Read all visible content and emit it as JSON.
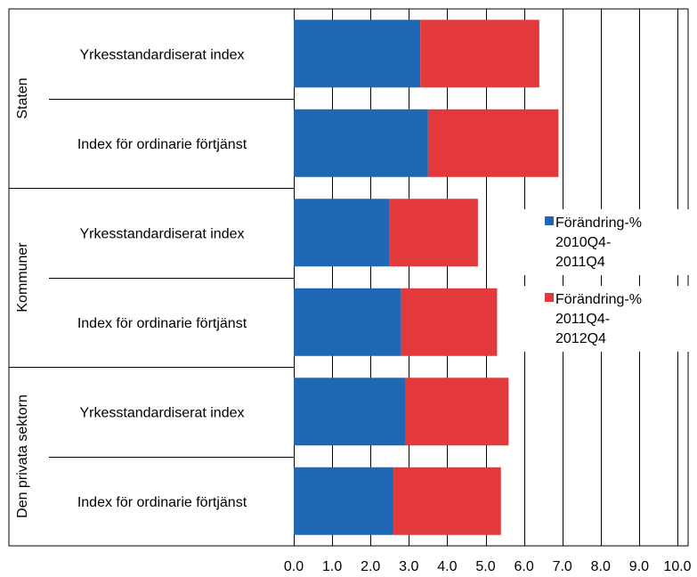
{
  "chart_data": {
    "type": "bar",
    "orientation": "horizontal",
    "stacked": true,
    "title": "",
    "xlabel": "",
    "ylabel": "",
    "xlim": [
      0,
      10
    ],
    "x_ticks": [
      "0.0",
      "1.0",
      "2.0",
      "3.0",
      "4.0",
      "5.0",
      "6.0",
      "7.0",
      "8.0",
      "9.0",
      "10.0"
    ],
    "grid": "vertical",
    "legend_position": "right",
    "groups": [
      "Staten",
      "Kommuner",
      "Den privata sektorn"
    ],
    "categories": [
      {
        "group": "Staten",
        "label": "Yrkesstandardiserat index"
      },
      {
        "group": "Staten",
        "label": "Index för ordinarie förtjänst"
      },
      {
        "group": "Kommuner",
        "label": "Yrkesstandardiserat index"
      },
      {
        "group": "Kommuner",
        "label": "Index för ordinarie förtjänst"
      },
      {
        "group": "Den privata sektorn",
        "label": "Yrkesstandardiserat index"
      },
      {
        "group": "Den privata sektorn",
        "label": "Index för ordinarie förtjänst"
      }
    ],
    "series": [
      {
        "name": "Förändring-% 2010Q4-2011Q4",
        "legend_lines": [
          "Förändring-%",
          "2010Q4-",
          "2011Q4"
        ],
        "color": "#1f66b3",
        "values": [
          3.3,
          3.5,
          2.5,
          2.8,
          2.9,
          2.6
        ]
      },
      {
        "name": "Förändring-% 2011Q4-2012Q4",
        "legend_lines": [
          "Förändring-%",
          "2011Q4-",
          "2012Q4"
        ],
        "color": "#e3383c",
        "values": [
          3.1,
          3.4,
          2.3,
          2.5,
          2.7,
          2.8
        ]
      }
    ]
  }
}
